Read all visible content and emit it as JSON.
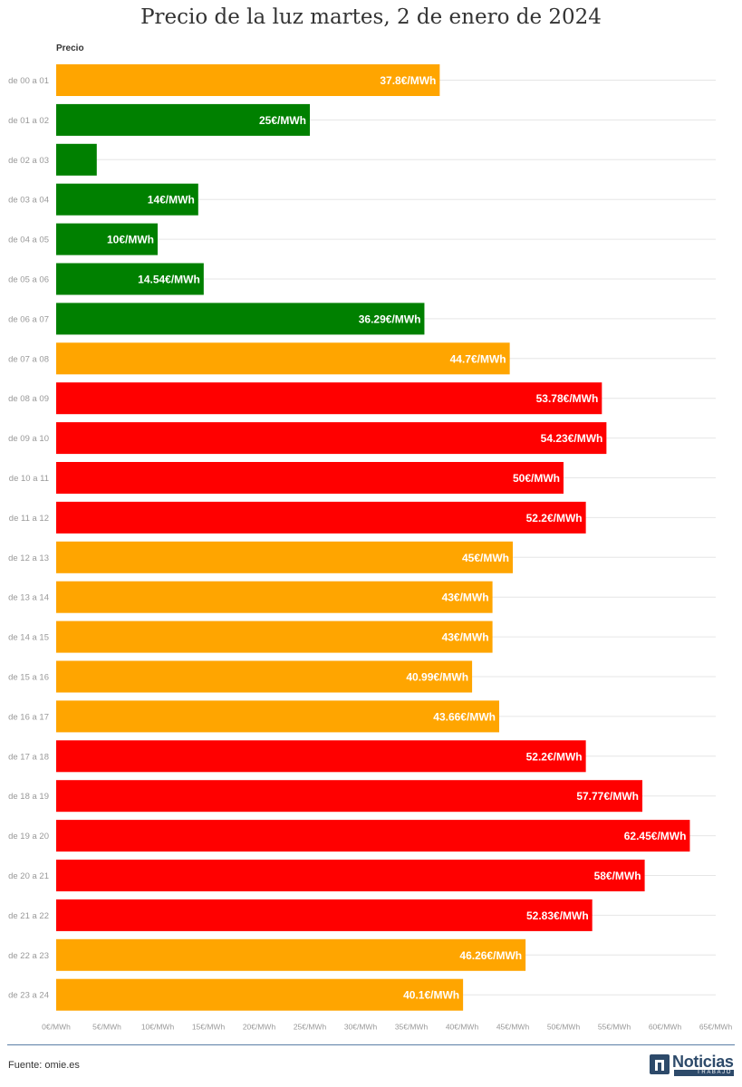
{
  "title": "Precio de la luz martes, 2 de enero de 2024",
  "source": "Fuente: omie.es",
  "logo": {
    "word": "Noticias",
    "sub": "TRABAJO"
  },
  "colors": {
    "green": "#008000",
    "orange": "#FFA500",
    "red": "#FF0000",
    "grid": "#e6e6e6",
    "label": "#999999"
  },
  "chart_data": {
    "type": "bar",
    "orientation": "horizontal",
    "title": "Precio de la luz martes, 2 de enero de 2024",
    "series_label": "Precio",
    "xlim": [
      0,
      65
    ],
    "xticks": [
      0,
      5,
      10,
      15,
      20,
      25,
      30,
      35,
      40,
      45,
      50,
      55,
      60,
      65
    ],
    "xtick_suffix": "€/MWh",
    "grid": true,
    "categories": [
      "de 00 a 01",
      "de 01 a 02",
      "de 02 a 03",
      "de 03 a 04",
      "de 04 a 05",
      "de 05 a 06",
      "de 06 a 07",
      "de 07 a 08",
      "de 08 a 09",
      "de 09 a 10",
      "de 10 a 11",
      "de 11 a 12",
      "de 12 a 13",
      "de 13 a 14",
      "de 14 a 15",
      "de 15 a 16",
      "de 16 a 17",
      "de 17 a 18",
      "de 18 a 19",
      "de 19 a 20",
      "de 20 a 21",
      "de 21 a 22",
      "de 22 a 23",
      "de 23 a 24"
    ],
    "values": [
      37.8,
      25,
      4,
      14,
      10,
      14.54,
      36.29,
      44.7,
      53.78,
      54.23,
      50,
      52.2,
      45,
      43,
      43,
      40.99,
      43.66,
      52.2,
      57.77,
      62.45,
      58,
      52.83,
      46.26,
      40.1
    ],
    "labels": [
      "37.8€/MWh",
      "25€/MWh",
      "",
      "14€/MWh",
      "10€/MWh",
      "14.54€/MWh",
      "36.29€/MWh",
      "44.7€/MWh",
      "53.78€/MWh",
      "54.23€/MWh",
      "50€/MWh",
      "52.2€/MWh",
      "45€/MWh",
      "43€/MWh",
      "43€/MWh",
      "40.99€/MWh",
      "43.66€/MWh",
      "52.2€/MWh",
      "57.77€/MWh",
      "62.45€/MWh",
      "58€/MWh",
      "52.83€/MWh",
      "46.26€/MWh",
      "40.1€/MWh"
    ],
    "bar_colors": [
      "orange",
      "green",
      "green",
      "green",
      "green",
      "green",
      "green",
      "orange",
      "red",
      "red",
      "red",
      "red",
      "orange",
      "orange",
      "orange",
      "orange",
      "orange",
      "red",
      "red",
      "red",
      "red",
      "red",
      "orange",
      "orange"
    ]
  }
}
